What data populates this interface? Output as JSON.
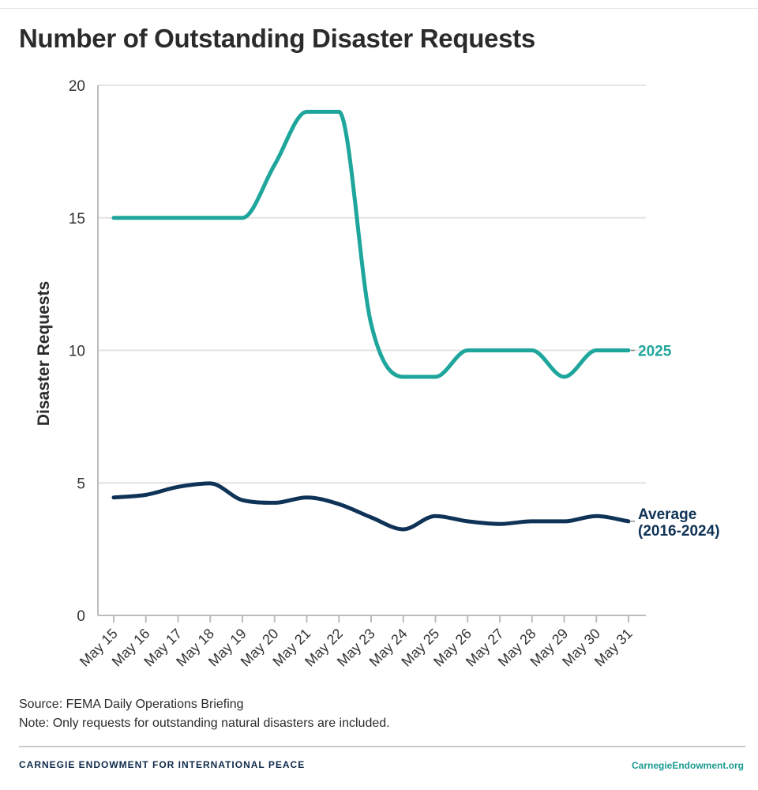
{
  "chart_data": {
    "type": "line",
    "title": "Number of Outstanding Disaster Requests",
    "xlabel": "",
    "ylabel": "Disaster Requests",
    "ylim": [
      0,
      20
    ],
    "yticks": [
      0,
      5,
      10,
      15,
      20
    ],
    "grid": true,
    "categories": [
      "May 15",
      "May 16",
      "May 17",
      "May 18",
      "May 19",
      "May 20",
      "May 21",
      "May 22",
      "May 23",
      "May 24",
      "May 25",
      "May 26",
      "May 27",
      "May 28",
      "May 29",
      "May 30",
      "May 31"
    ],
    "series": [
      {
        "name": "2025",
        "label": "2025",
        "color": "#1fa69c",
        "values": [
          15,
          15,
          15,
          15,
          15,
          17,
          19,
          19,
          11,
          9,
          9,
          10,
          10,
          10,
          9,
          10,
          10
        ]
      },
      {
        "name": "Average (2016-2024)",
        "label_lines": [
          "Average",
          "(2016-2024)"
        ],
        "color": "#0f3356",
        "values": [
          4.45,
          4.55,
          4.85,
          4.98,
          4.35,
          4.25,
          4.45,
          4.2,
          3.7,
          3.25,
          3.75,
          3.55,
          3.45,
          3.55,
          3.55,
          3.75,
          3.55
        ]
      }
    ]
  },
  "notes": {
    "source": "Source: FEMA Daily Operations Briefing",
    "note": "Note: Only requests for outstanding natural disasters are included."
  },
  "footer": {
    "org": "CARNEGIE ENDOWMENT FOR INTERNATIONAL PEACE",
    "url": "CarnegieEndowment.org"
  },
  "colors": {
    "teal": "#1fa69c",
    "navy": "#0f3356",
    "grid": "#e3e3e3",
    "axis": "#bdbdbd"
  }
}
